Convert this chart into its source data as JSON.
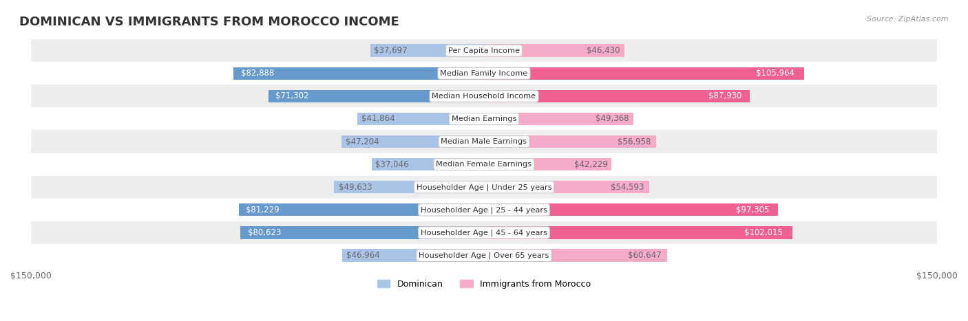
{
  "title": "DOMINICAN VS IMMIGRANTS FROM MOROCCO INCOME",
  "source": "Source: ZipAtlas.com",
  "categories": [
    "Per Capita Income",
    "Median Family Income",
    "Median Household Income",
    "Median Earnings",
    "Median Male Earnings",
    "Median Female Earnings",
    "Householder Age | Under 25 years",
    "Householder Age | 25 - 44 years",
    "Householder Age | 45 - 64 years",
    "Householder Age | Over 65 years"
  ],
  "dominican_values": [
    37697,
    82888,
    71302,
    41864,
    47204,
    37046,
    49633,
    81229,
    80623,
    46964
  ],
  "morocco_values": [
    46430,
    105964,
    87930,
    49368,
    56958,
    42229,
    54593,
    97305,
    102015,
    60647
  ],
  "max_value": 150000,
  "dominican_color_light": "#aac4e8",
  "dominican_color_dark": "#6699cc",
  "morocco_color_light": "#f5aac8",
  "morocco_color_dark": "#f06090",
  "label_color_outside": "#666666",
  "label_color_inside": "#ffffff",
  "threshold_inside": 70000,
  "bar_height": 0.55,
  "row_bg_color": "#eeeeee",
  "row_bg_color2": "#ffffff",
  "background_color": "#ffffff",
  "title_fontsize": 13,
  "label_fontsize": 8.5,
  "category_fontsize": 8.2,
  "axis_label_fontsize": 9,
  "legend_fontsize": 9
}
